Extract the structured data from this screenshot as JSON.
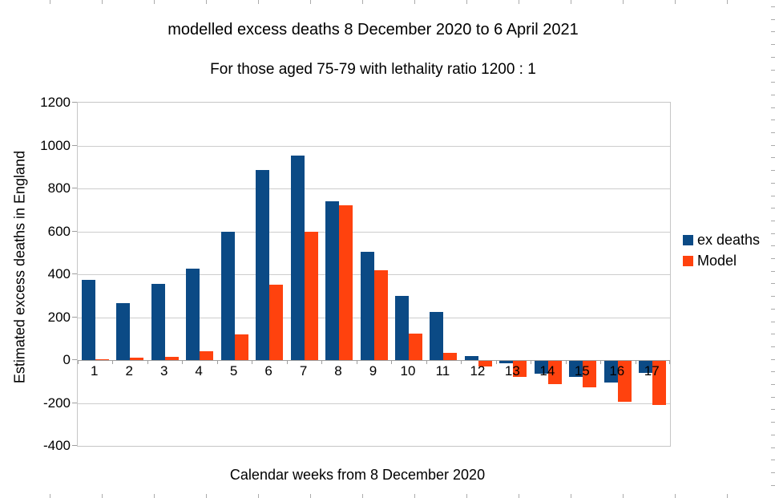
{
  "chart_data": {
    "type": "bar",
    "title": "modelled excess deaths 8 December 2020 to 6 April 2021",
    "subtitle": "For those aged 75-79 with lethality ratio 1200 : 1",
    "xlabel": "Calendar weeks from 8 December 2020",
    "ylabel": "Estimated excess deaths in England",
    "categories": [
      "1",
      "2",
      "3",
      "4",
      "5",
      "6",
      "7",
      "8",
      "9",
      "10",
      "11",
      "12",
      "13",
      "14",
      "15",
      "16",
      "17"
    ],
    "series": [
      {
        "name": "ex deaths",
        "color": "#0B4A85",
        "values": [
          375,
          265,
          355,
          425,
          600,
          885,
          955,
          740,
          505,
          300,
          225,
          20,
          -10,
          -60,
          -75,
          -100,
          -55
        ]
      },
      {
        "name": "Model",
        "color": "#FF420E",
        "values": [
          5,
          10,
          15,
          40,
          120,
          350,
          600,
          720,
          420,
          125,
          35,
          -25,
          -75,
          -110,
          -125,
          -190,
          -205
        ]
      }
    ],
    "ylim": [
      -400,
      1200
    ],
    "ytick_step": 200,
    "grid": true,
    "legend_position": "right"
  },
  "style_colors": {
    "grid": "#CDCDCD",
    "axis": "#9E9E9E",
    "plot_border": "#C6C6C6",
    "text": "#000000",
    "edge_tick": "#ABABAB",
    "background": "#FFFFFF"
  }
}
